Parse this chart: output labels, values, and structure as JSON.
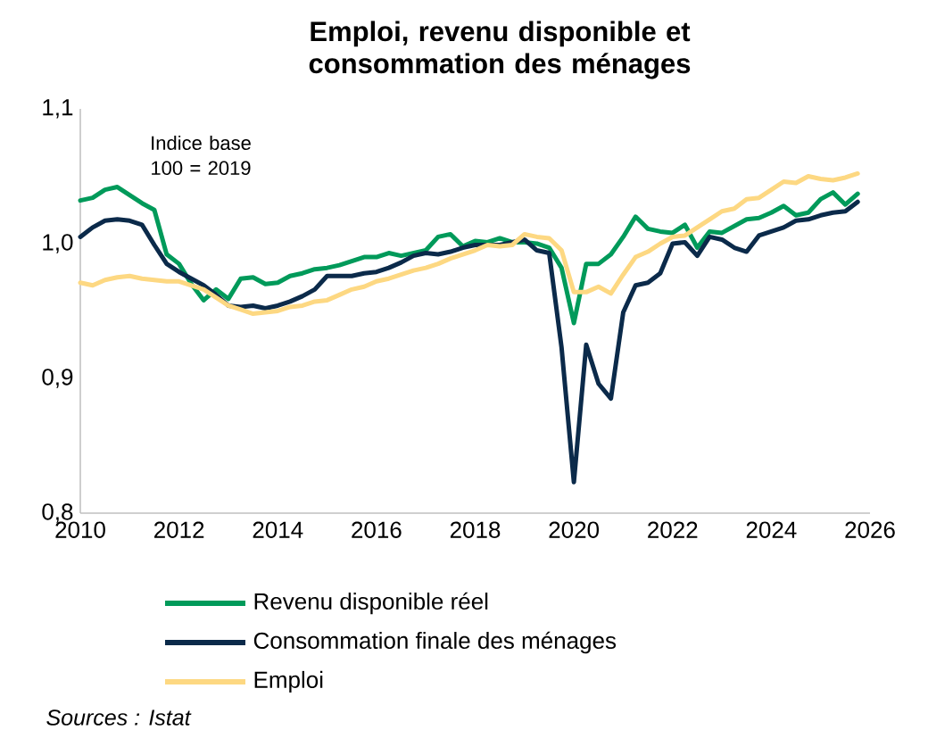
{
  "chart_data": {
    "type": "line",
    "title": "Emploi, revenu disponible et consommation des ménages",
    "annotations": [
      "Indice base 100 = 2019",
      "*Sources : Istat*"
    ],
    "x": [
      2010.0,
      2010.25,
      2010.5,
      2010.75,
      2011.0,
      2011.25,
      2011.5,
      2011.75,
      2012.0,
      2012.25,
      2012.5,
      2012.75,
      2013.0,
      2013.25,
      2013.5,
      2013.75,
      2014.0,
      2014.25,
      2014.5,
      2014.75,
      2015.0,
      2015.25,
      2015.5,
      2015.75,
      2016.0,
      2016.25,
      2016.5,
      2016.75,
      2017.0,
      2017.25,
      2017.5,
      2017.75,
      2018.0,
      2018.25,
      2018.5,
      2018.75,
      2019.0,
      2019.25,
      2019.5,
      2019.75,
      2020.0,
      2020.25,
      2020.5,
      2020.75,
      2021.0,
      2021.25,
      2021.5,
      2021.75,
      2022.0,
      2022.25,
      2022.5,
      2022.75,
      2023.0,
      2023.25,
      2023.5,
      2023.75,
      2024.0,
      2024.25,
      2024.5,
      2024.75,
      2025.0,
      2025.25,
      2025.5,
      2025.75
    ],
    "series": [
      {
        "name": "Revenu disponible réel",
        "color": "#009a5a",
        "values": [
          1.032,
          1.034,
          1.04,
          1.042,
          1.036,
          1.03,
          1.025,
          0.992,
          0.985,
          0.97,
          0.958,
          0.966,
          0.959,
          0.974,
          0.975,
          0.97,
          0.971,
          0.976,
          0.978,
          0.981,
          0.982,
          0.984,
          0.987,
          0.99,
          0.99,
          0.993,
          0.991,
          0.993,
          0.995,
          1.005,
          1.007,
          0.998,
          1.002,
          1.001,
          1.004,
          1.001,
          1.001,
          1.0,
          0.997,
          0.982,
          0.941,
          0.985,
          0.985,
          0.992,
          1.005,
          1.02,
          1.011,
          1.009,
          1.008,
          1.014,
          0.997,
          1.009,
          1.008,
          1.013,
          1.018,
          1.019,
          1.023,
          1.028,
          1.021,
          1.023,
          1.033,
          1.038,
          1.029,
          1.037
        ]
      },
      {
        "name": "Consommation finale des ménages",
        "color": "#0b2a4a",
        "values": [
          1.005,
          1.012,
          1.017,
          1.018,
          1.017,
          1.014,
          0.999,
          0.985,
          0.979,
          0.974,
          0.969,
          0.962,
          0.954,
          0.953,
          0.954,
          0.952,
          0.954,
          0.957,
          0.961,
          0.966,
          0.976,
          0.976,
          0.976,
          0.978,
          0.979,
          0.982,
          0.986,
          0.991,
          0.993,
          0.992,
          0.994,
          0.997,
          0.999,
          0.999,
          0.999,
          1.001,
          1.003,
          0.995,
          0.993,
          0.923,
          0.823,
          0.925,
          0.896,
          0.885,
          0.949,
          0.969,
          0.971,
          0.978,
          1.0,
          1.001,
          0.991,
          1.005,
          1.003,
          0.997,
          0.994,
          1.006,
          1.009,
          1.012,
          1.017,
          1.018,
          1.021,
          1.023,
          1.024,
          1.031
        ]
      },
      {
        "name": "Emploi",
        "color": "#fdd882",
        "values": [
          0.971,
          0.969,
          0.973,
          0.975,
          0.976,
          0.974,
          0.973,
          0.972,
          0.972,
          0.969,
          0.966,
          0.96,
          0.954,
          0.951,
          0.948,
          0.949,
          0.95,
          0.953,
          0.954,
          0.957,
          0.958,
          0.962,
          0.966,
          0.968,
          0.972,
          0.974,
          0.977,
          0.98,
          0.982,
          0.985,
          0.989,
          0.992,
          0.995,
          0.999,
          0.998,
          0.999,
          1.007,
          1.005,
          1.004,
          0.995,
          0.964,
          0.964,
          0.968,
          0.963,
          0.977,
          0.99,
          0.994,
          1.0,
          1.005,
          1.006,
          1.012,
          1.018,
          1.024,
          1.026,
          1.033,
          1.034,
          1.04,
          1.046,
          1.045,
          1.05,
          1.048,
          1.047,
          1.049,
          1.052
        ]
      }
    ],
    "xlim": [
      2010,
      2026
    ],
    "xticks": [
      2010,
      2012,
      2014,
      2016,
      2018,
      2020,
      2022,
      2024,
      2026
    ],
    "ylim": [
      0.8,
      1.1
    ],
    "yticks": [
      {
        "value": 0.8,
        "label": "0,8"
      },
      {
        "value": 0.9,
        "label": "0,9"
      },
      {
        "value": 1.0,
        "label": "1,0"
      },
      {
        "value": 1.1,
        "label": "1,1"
      }
    ],
    "legend": "bottom",
    "grid": false,
    "marker": "none",
    "line_style": "solid"
  }
}
